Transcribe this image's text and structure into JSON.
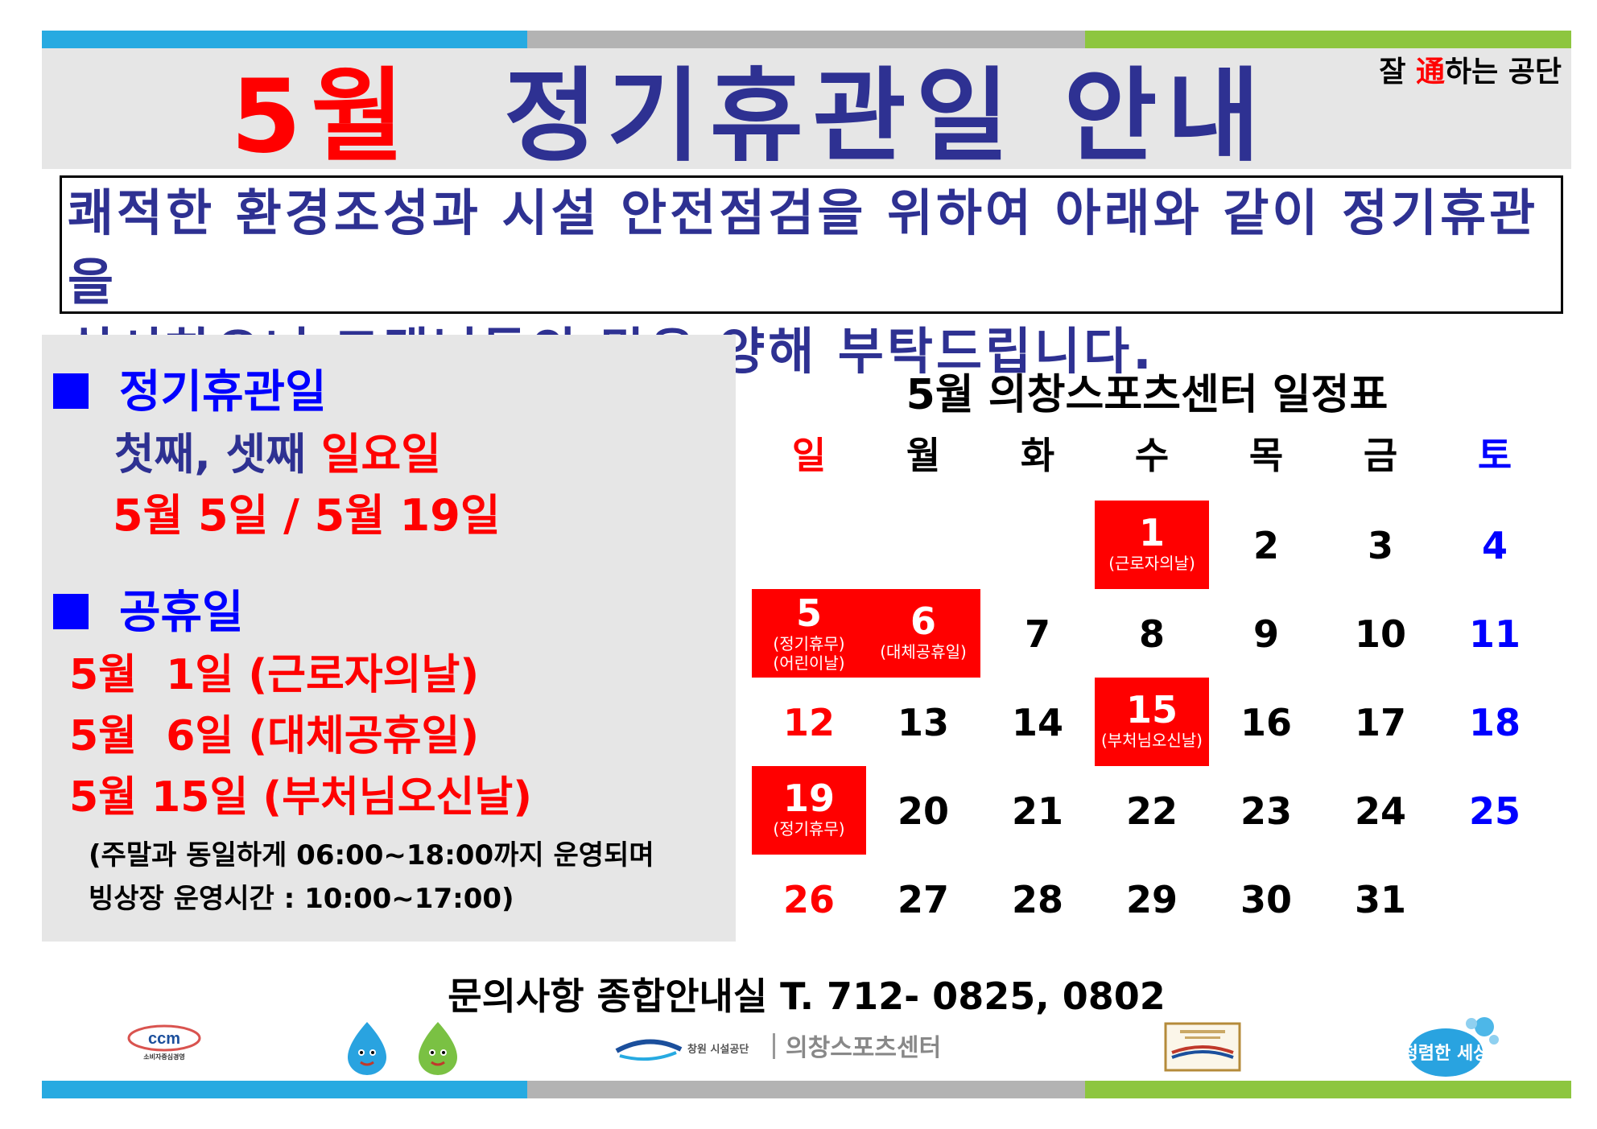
{
  "title": {
    "month": "5월",
    "rest": "정기휴관일 안내"
  },
  "slogan": {
    "pre": "잘 ",
    "highlight": "通",
    "post": "하는 공단"
  },
  "notice": {
    "line1": "쾌적한 환경조성과 시설 안전점검을 위하여 아래와 같이 정기휴관을",
    "line2": "실시하오니 고객님들의 많은 양해 부탁드립니다."
  },
  "regular_closure": {
    "heading": "정기휴관일",
    "days_prefix": "첫째, 셋째 ",
    "days_highlight": "일요일",
    "dates": "5월 5일 / 5월 19일"
  },
  "public_holidays": {
    "heading": "공휴일",
    "items": [
      "5월  1일 (근로자의날)",
      "5월  6일 (대체공휴일)",
      "5월 15일 (부처님오신날)"
    ],
    "note_line1": "(주말과 동일하게 06:00~18:00까지 운영되며",
    "note_line2": "빙상장 운영시간 : 10:00~17:00)"
  },
  "calendar": {
    "title": "5월 의창스포츠센터 일정표",
    "weekdays": [
      "일",
      "월",
      "화",
      "수",
      "목",
      "금",
      "토"
    ],
    "weeks": [
      [
        {
          "d": ""
        },
        {
          "d": ""
        },
        {
          "d": ""
        },
        {
          "d": "1",
          "label": "(근로자의날)",
          "hi": true
        },
        {
          "d": "2"
        },
        {
          "d": "3"
        },
        {
          "d": "4"
        }
      ],
      [
        {
          "d": "5",
          "label": "(정기휴무)",
          "label2": "(어린이날)",
          "hi": true
        },
        {
          "d": "6",
          "label": "(대체공휴일)",
          "hi": true
        },
        {
          "d": "7"
        },
        {
          "d": "8"
        },
        {
          "d": "9"
        },
        {
          "d": "10"
        },
        {
          "d": "11"
        }
      ],
      [
        {
          "d": "12"
        },
        {
          "d": "13"
        },
        {
          "d": "14"
        },
        {
          "d": "15",
          "label": "(부처님오신날)",
          "hi": true
        },
        {
          "d": "16"
        },
        {
          "d": "17"
        },
        {
          "d": "18"
        }
      ],
      [
        {
          "d": "19",
          "label": "(정기휴무)",
          "hi": true
        },
        {
          "d": "20"
        },
        {
          "d": "21"
        },
        {
          "d": "22"
        },
        {
          "d": "23"
        },
        {
          "d": "24"
        },
        {
          "d": "25"
        }
      ],
      [
        {
          "d": "26"
        },
        {
          "d": "27"
        },
        {
          "d": "28"
        },
        {
          "d": "29"
        },
        {
          "d": "30"
        },
        {
          "d": "31"
        },
        {
          "d": ""
        }
      ]
    ]
  },
  "contact": "문의사항  종합안내실 T. 712- 0825, 0802",
  "logos": {
    "ccm": "ccm",
    "ccm_sub": "소비자중심경영",
    "agency_small": "창원 시설공단",
    "center_name": "의창스포츠센터",
    "slogan_logo": "청렴한 세상"
  },
  "colors": {
    "red": "#ff0000",
    "navy": "#2e3192",
    "blue": "#0000ff",
    "panel": "#e6e6e6"
  }
}
